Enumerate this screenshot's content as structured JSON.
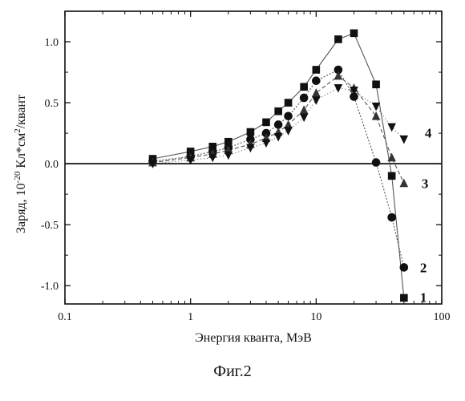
{
  "chart_data": {
    "type": "scatter",
    "xscale": "log",
    "xlim": [
      0.1,
      100
    ],
    "ylim": [
      -1.15,
      1.25
    ],
    "xlabel": "Энергия кванта, МэВ",
    "ylabel_parts": {
      "pre": "Заряд, 10",
      "exp1": "-20",
      "mid": " Кл*см",
      "exp2": "2",
      "post": "/квант"
    },
    "x_ticks": [
      0.1,
      1,
      10,
      100
    ],
    "x_tick_labels": [
      "0.1",
      "1",
      "10",
      "100"
    ],
    "y_ticks": [
      -1.0,
      -0.5,
      0.0,
      0.5,
      1.0
    ],
    "y_tick_labels": [
      "-1.0",
      "-0.5",
      "0.0",
      "0.5",
      "1.0"
    ],
    "zero_line": true,
    "grid": false,
    "series": [
      {
        "name": "1",
        "marker": "square",
        "x": [
          0.5,
          1,
          1.5,
          2,
          3,
          4,
          5,
          6,
          8,
          10,
          15,
          20,
          30,
          40,
          50
        ],
        "y": [
          0.04,
          0.1,
          0.14,
          0.18,
          0.26,
          0.34,
          0.43,
          0.5,
          0.63,
          0.77,
          1.02,
          1.07,
          0.65,
          -0.1,
          -1.1
        ]
      },
      {
        "name": "2",
        "marker": "circle",
        "x": [
          0.5,
          1,
          1.5,
          2,
          3,
          4,
          5,
          6,
          8,
          10,
          15,
          20,
          30,
          40,
          50
        ],
        "y": [
          0.02,
          0.06,
          0.1,
          0.13,
          0.2,
          0.25,
          0.32,
          0.39,
          0.54,
          0.68,
          0.77,
          0.55,
          0.01,
          -0.44,
          -0.85
        ]
      },
      {
        "name": "3",
        "marker": "triangle-up",
        "x": [
          0.5,
          1,
          1.5,
          2,
          3,
          4,
          5,
          6,
          8,
          10,
          15,
          20,
          30,
          40,
          50
        ],
        "y": [
          0.01,
          0.05,
          0.08,
          0.11,
          0.16,
          0.21,
          0.26,
          0.32,
          0.44,
          0.58,
          0.72,
          0.62,
          0.39,
          0.05,
          -0.16
        ]
      },
      {
        "name": "4",
        "marker": "triangle-down",
        "x": [
          0.5,
          1,
          1.5,
          2,
          3,
          4,
          5,
          6,
          8,
          10,
          15,
          20,
          30,
          40,
          50
        ],
        "y": [
          0.0,
          0.03,
          0.05,
          0.07,
          0.13,
          0.17,
          0.22,
          0.27,
          0.38,
          0.52,
          0.62,
          0.6,
          0.47,
          0.3,
          0.2
        ]
      }
    ]
  },
  "figure_caption": "Фиг.2",
  "colors": {
    "ink": "#111111",
    "curve": "#555555",
    "background": "#ffffff"
  }
}
